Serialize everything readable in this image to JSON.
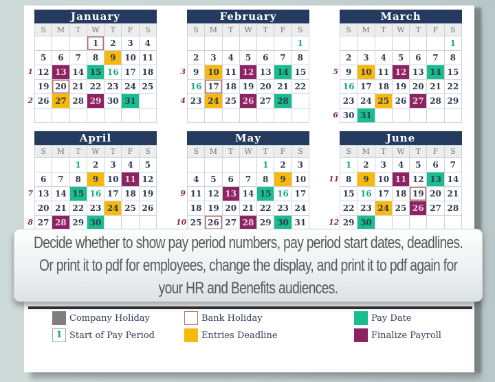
{
  "colors": {
    "header_navy": "#243a5e",
    "grid_line": "#ccd3d9",
    "date_text": "#2e3951",
    "pay_date_teal": "#19bd8e",
    "start_text_teal": "#17a981",
    "entries_deadline_yellow": "#f8b90d",
    "finalize_payroll_purple": "#8d2363",
    "bank_holiday_border": "#b66f66",
    "company_holiday_gray": "#7f7f7f",
    "period_number_maroon": "#7e2f52"
  },
  "cell_codes": {
    "B": "bank-holiday",
    "D": "entries-deadline",
    "P": "finalize-payroll",
    "G": "pay-date",
    "S": "start-of-pay-period"
  },
  "day_headers": [
    "S",
    "M",
    "T",
    "W",
    "T",
    "F",
    "S"
  ],
  "months": [
    {
      "name": "January",
      "periods": {
        "2": "1",
        "4": "2"
      },
      "weeks": [
        [
          "",
          "",
          "",
          "1:B",
          "2",
          "3",
          "4"
        ],
        [
          "5",
          "6",
          "7",
          "8",
          "9:D",
          "10",
          "11"
        ],
        [
          "12",
          "13:P",
          "14",
          "15:G",
          "16:S",
          "17",
          "18"
        ],
        [
          "19",
          "20:B",
          "21",
          "22",
          "23",
          "24",
          "25"
        ],
        [
          "26",
          "27:D",
          "28",
          "29:P",
          "30",
          "31:G",
          ""
        ],
        [
          "",
          "",
          "",
          "",
          "",
          "",
          ""
        ]
      ]
    },
    {
      "name": "February",
      "periods": {
        "2": "3",
        "4": "4"
      },
      "weeks": [
        [
          "",
          "",
          "",
          "",
          "",
          "",
          "1:S"
        ],
        [
          "2",
          "3",
          "4",
          "5",
          "6",
          "7",
          "8"
        ],
        [
          "9",
          "10:D",
          "11",
          "12:P",
          "13",
          "14:G",
          "15"
        ],
        [
          "16:S",
          "17:B",
          "18",
          "19",
          "20",
          "21",
          "22"
        ],
        [
          "23",
          "24:D",
          "25",
          "26:P",
          "27",
          "28:G",
          ""
        ],
        [
          "",
          "",
          "",
          "",
          "",
          "",
          ""
        ]
      ]
    },
    {
      "name": "March",
      "periods": {
        "2": "5",
        "5": "6"
      },
      "weeks": [
        [
          "",
          "",
          "",
          "",
          "",
          "",
          "1:S"
        ],
        [
          "2",
          "3",
          "4",
          "5",
          "6",
          "7",
          "8"
        ],
        [
          "9",
          "10:D",
          "11",
          "12:P",
          "13",
          "14:G",
          "15"
        ],
        [
          "16:S",
          "17",
          "18",
          "19",
          "20",
          "21",
          "22"
        ],
        [
          "23",
          "24",
          "25:D",
          "26",
          "27:P",
          "28",
          "29"
        ],
        [
          "30",
          "31:G",
          "",
          "",
          "",
          "",
          ""
        ]
      ]
    },
    {
      "name": "April",
      "periods": {
        "2": "7",
        "4": "8"
      },
      "weeks": [
        [
          "",
          "",
          "1:S",
          "2",
          "3",
          "4",
          "5"
        ],
        [
          "6",
          "7",
          "8",
          "9:D",
          "10",
          "11:P",
          "12"
        ],
        [
          "13",
          "14",
          "15:G",
          "16:S",
          "17",
          "18",
          "19"
        ],
        [
          "20",
          "21",
          "22",
          "23",
          "24:D",
          "25",
          "26"
        ],
        [
          "27",
          "28:P",
          "29",
          "30:G",
          "",
          "",
          ""
        ],
        [
          "",
          "",
          "",
          "",
          "",
          "",
          ""
        ]
      ]
    },
    {
      "name": "May",
      "periods": {
        "2": "9",
        "4": "10"
      },
      "weeks": [
        [
          "",
          "",
          "",
          "",
          "1:S",
          "2",
          "3"
        ],
        [
          "4",
          "5",
          "6",
          "7",
          "8",
          "9:D",
          "10"
        ],
        [
          "11",
          "12",
          "13:P",
          "14",
          "15:G",
          "16:S",
          "17"
        ],
        [
          "18",
          "19",
          "20",
          "21",
          "22",
          "23",
          "24"
        ],
        [
          "25",
          "26:B",
          "27",
          "28:P",
          "29",
          "30:G",
          "31"
        ],
        [
          "",
          "",
          "",
          "",
          "",
          "",
          ""
        ]
      ]
    },
    {
      "name": "June",
      "periods": {
        "1": "11",
        "4": "12"
      },
      "weeks": [
        [
          "1:S",
          "2",
          "3",
          "4",
          "5",
          "6",
          "7"
        ],
        [
          "8",
          "9:D",
          "10",
          "11:P",
          "12",
          "13:G",
          "14"
        ],
        [
          "15",
          "16:S",
          "17",
          "18",
          "19:B",
          "20",
          "21"
        ],
        [
          "22",
          "23",
          "24:D",
          "25",
          "26:P",
          "27",
          "28"
        ],
        [
          "29",
          "30:G",
          "",
          "",
          "",
          "",
          ""
        ],
        [
          "",
          "",
          "",
          "",
          "",
          "",
          ""
        ]
      ]
    }
  ],
  "overlay": {
    "lines": [
      "Decide whether to show pay period numbers, pay period start dates, deadlines.",
      "Or print it to pdf for employees, change the display, and print it to pdf again for",
      "your HR and Benefits audiences."
    ]
  },
  "legend": {
    "rows": [
      [
        {
          "type": "company",
          "label": "Company Holiday"
        },
        {
          "type": "bank",
          "label": "Bank Holiday"
        },
        {
          "type": "payday",
          "label": "Pay Date"
        }
      ],
      [
        {
          "type": "start",
          "label": "Start of Pay Period",
          "swatch_text": "1"
        },
        {
          "type": "deadline",
          "label": "Entries Deadline"
        },
        {
          "type": "payroll",
          "label": "Finalize Payroll"
        }
      ]
    ]
  }
}
